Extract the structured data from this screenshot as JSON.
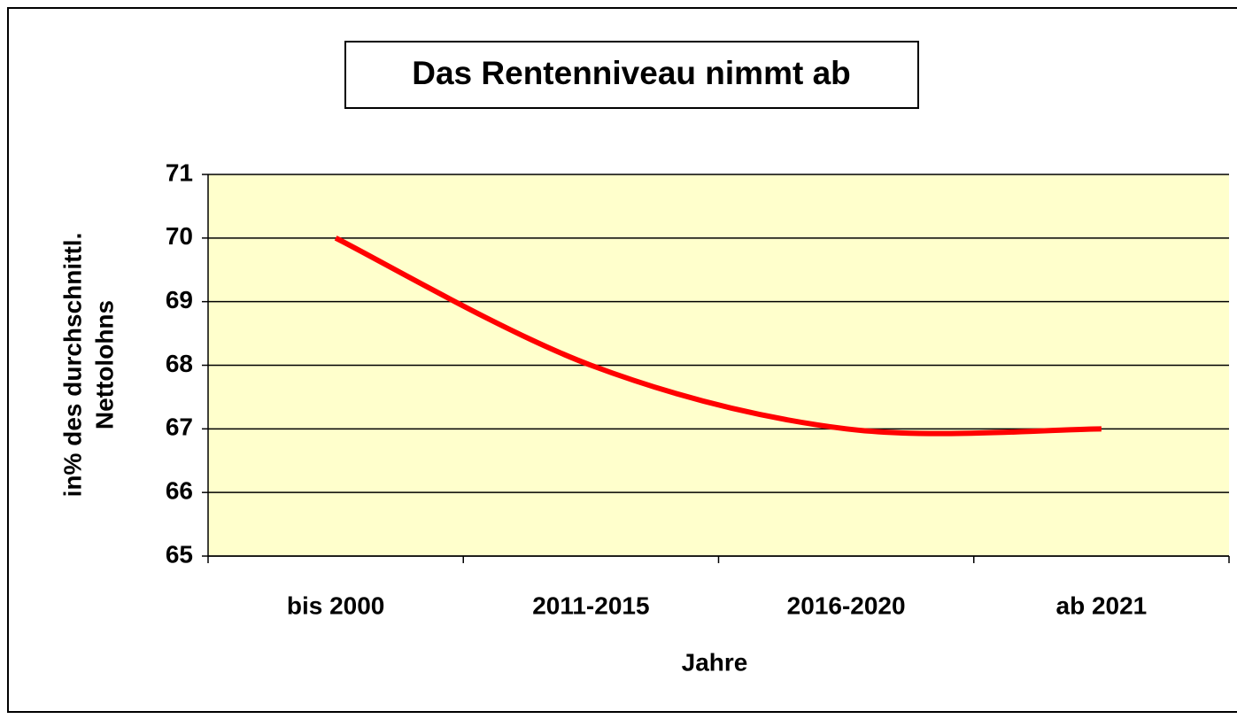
{
  "chart_data": {
    "type": "line",
    "title": "Das Rentenniveau nimmt ab",
    "xlabel": "Jahre",
    "ylabel": [
      "in% des durchschnittl.",
      "Nettolohns"
    ],
    "categories": [
      "bis 2000",
      "2011-2015",
      "2016-2020",
      "ab 2021"
    ],
    "series": [
      {
        "name": "Rentenniveau",
        "color": "#ff0000",
        "values": [
          70,
          68,
          67,
          67
        ]
      }
    ],
    "ylim": [
      65,
      71
    ],
    "yticks": [
      65,
      66,
      67,
      68,
      69,
      70,
      71
    ],
    "grid": true,
    "smooth": true
  }
}
